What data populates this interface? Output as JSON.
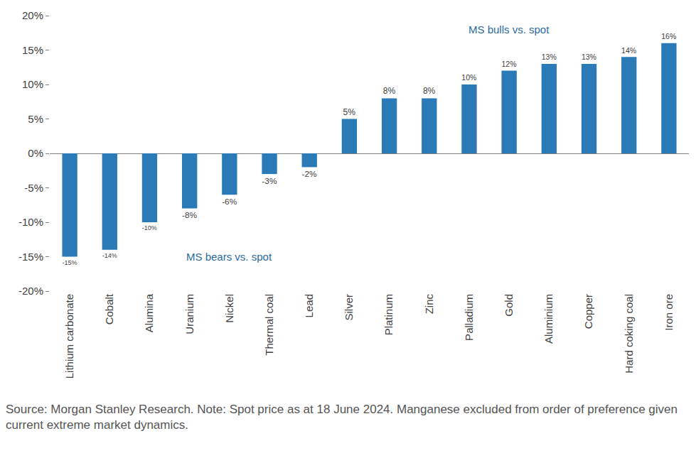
{
  "chart_data": {
    "type": "bar",
    "categories": [
      "Lithium carbonate",
      "Cobalt",
      "Alumina",
      "Uranium",
      "Nickel",
      "Thermal coal",
      "Lead",
      "Silver",
      "Platinum",
      "Zinc",
      "Palladium",
      "Gold",
      "Aluminium",
      "Copper",
      "Hard coking coal",
      "Iron ore"
    ],
    "values": [
      -15,
      -14,
      -10,
      -8,
      -6,
      -3,
      -2,
      5,
      8,
      8,
      10,
      12,
      13,
      13,
      14,
      16
    ],
    "value_labels": [
      "-15%",
      "-14%",
      "-10%",
      "-8%",
      "-6%",
      "-3%",
      "-2%",
      "5%",
      "8%",
      "8%",
      "10%",
      "12%",
      "13%",
      "13%",
      "14%",
      "16%"
    ],
    "color": "#2a7ab8",
    "ylim": [
      -20,
      20
    ],
    "yticks": [
      {
        "value": -20,
        "label": "-20%"
      },
      {
        "value": -15,
        "label": "-15%"
      },
      {
        "value": -10,
        "label": "-10%"
      },
      {
        "value": -5,
        "label": "-5%"
      },
      {
        "value": 0,
        "label": "0%"
      },
      {
        "value": 5,
        "label": "5%"
      },
      {
        "value": 10,
        "label": "10%"
      },
      {
        "value": 15,
        "label": "15%"
      },
      {
        "value": 20,
        "label": "20%"
      }
    ],
    "grid": false,
    "data_labels": true,
    "annotations": [
      {
        "text": "MS bulls vs. spot",
        "x": 11,
        "y": 18
      },
      {
        "text": "MS bears vs. spot",
        "x": 4,
        "y": -15
      }
    ],
    "source": "Source: Morgan Stanley Research. Note: Spot price as at 18 June 2024. Manganese excluded from order of preference given current extreme market dynamics."
  }
}
